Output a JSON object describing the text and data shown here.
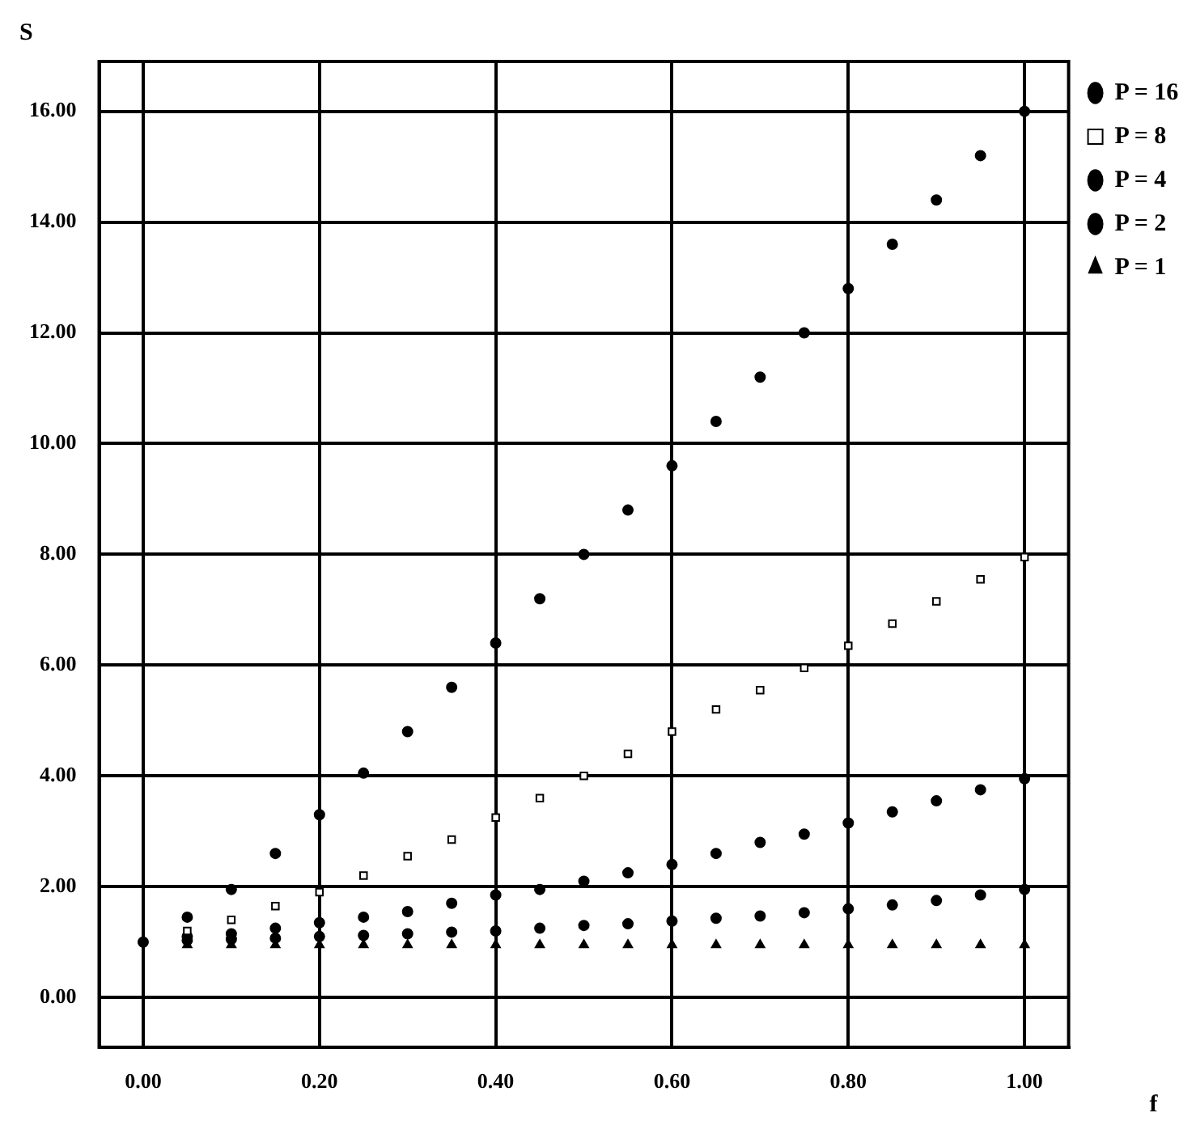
{
  "chart_data": {
    "type": "scatter",
    "xlabel": "f",
    "ylabel": "S",
    "x": [
      0,
      0.05,
      0.1,
      0.15,
      0.2,
      0.25,
      0.3,
      0.35,
      0.4,
      0.45,
      0.5,
      0.55,
      0.6,
      0.65,
      0.7,
      0.75,
      0.8,
      0.85,
      0.9,
      0.95,
      1.0
    ],
    "series": [
      {
        "name": "P = 16",
        "color": "#000000",
        "marker": "circle",
        "values": [
          1.0,
          1.45,
          1.95,
          2.6,
          3.3,
          4.05,
          4.8,
          5.6,
          6.4,
          7.2,
          8.0,
          8.8,
          9.6,
          10.4,
          11.2,
          12.0,
          12.8,
          13.6,
          14.4,
          15.2,
          16.0
        ]
      },
      {
        "name": "P = 8",
        "color": "#000000",
        "marker": "square",
        "values": [
          null,
          1.2,
          1.4,
          1.65,
          1.9,
          2.2,
          2.55,
          2.85,
          3.25,
          3.6,
          4.0,
          4.4,
          4.8,
          5.2,
          5.55,
          5.95,
          6.35,
          6.75,
          7.15,
          7.55,
          7.95
        ]
      },
      {
        "name": "P = 4",
        "color": "#000000",
        "marker": "circle",
        "values": [
          null,
          1.1,
          1.15,
          1.25,
          1.35,
          1.45,
          1.55,
          1.7,
          1.85,
          1.95,
          2.1,
          2.25,
          2.4,
          2.6,
          2.8,
          2.95,
          3.15,
          3.35,
          3.55,
          3.75,
          3.95
        ]
      },
      {
        "name": "P = 2",
        "color": "#000000",
        "marker": "circle",
        "values": [
          null,
          1.03,
          1.05,
          1.07,
          1.1,
          1.12,
          1.15,
          1.18,
          1.2,
          1.25,
          1.3,
          1.33,
          1.38,
          1.43,
          1.47,
          1.53,
          1.6,
          1.67,
          1.75,
          1.85,
          1.95
        ]
      },
      {
        "name": "P = 1",
        "color": "#000000",
        "marker": "triangle",
        "values": [
          null,
          0.95,
          0.95,
          0.95,
          0.95,
          0.95,
          0.95,
          0.95,
          0.95,
          0.95,
          0.95,
          0.95,
          0.95,
          0.95,
          0.95,
          0.95,
          0.95,
          0.95,
          0.95,
          0.95,
          0.95
        ]
      }
    ],
    "xlim": [
      -0.05,
      1.05
    ],
    "xticks": [
      {
        "value": 0,
        "label": "0.00"
      },
      {
        "value": 0.2,
        "label": "0.20"
      },
      {
        "value": 0.4,
        "label": "0.40"
      },
      {
        "value": 0.6,
        "label": "0.60"
      },
      {
        "value": 0.8,
        "label": "0.80"
      },
      {
        "value": 1,
        "label": "1.00"
      }
    ],
    "ylim": [
      -0.9,
      16.9
    ],
    "yticks": [
      {
        "value": 0,
        "label": "0.00"
      },
      {
        "value": 2,
        "label": "2.00"
      },
      {
        "value": 4,
        "label": "4.00"
      },
      {
        "value": 6,
        "label": "6.00"
      },
      {
        "value": 8,
        "label": "8.00"
      },
      {
        "value": 10,
        "label": "10.00"
      },
      {
        "value": 12,
        "label": "12.00"
      },
      {
        "value": 14,
        "label": "14.00"
      },
      {
        "value": 16,
        "label": "16.00"
      }
    ],
    "grid": true,
    "legend": "top right"
  }
}
